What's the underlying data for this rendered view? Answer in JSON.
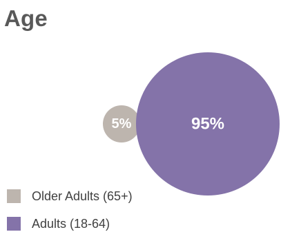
{
  "chart_data": {
    "type": "bubble",
    "title": "Age",
    "series": [
      {
        "name": "Older Adults (65+)",
        "value": 5,
        "label": "5%",
        "color": "#bdb5ae"
      },
      {
        "name": "Adults (18-64)",
        "value": 95,
        "label": "95%",
        "color": "#8473a9"
      }
    ],
    "legend": "bottom-left"
  }
}
